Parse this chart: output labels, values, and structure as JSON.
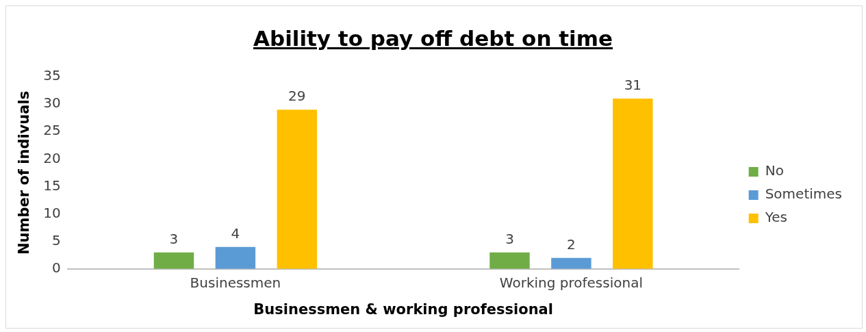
{
  "chart_data": {
    "type": "bar",
    "title": "Ability to pay off debt on time",
    "xlabel": "Businessmen & working professional",
    "ylabel": "Number of indivuals",
    "categories": [
      "Businessmen",
      "Working professional"
    ],
    "series": [
      {
        "name": "No",
        "color": "#70ad47",
        "values": [
          3,
          3
        ]
      },
      {
        "name": "Sometimes",
        "color": "#5b9bd5",
        "values": [
          4,
          2
        ]
      },
      {
        "name": "Yes",
        "color": "#ffc000",
        "values": [
          29,
          31
        ]
      }
    ],
    "ylim": [
      0,
      35
    ],
    "yticks": [
      0,
      5,
      10,
      15,
      20,
      25,
      30,
      35
    ],
    "grid": false,
    "legend": "right",
    "data_labels": true
  }
}
